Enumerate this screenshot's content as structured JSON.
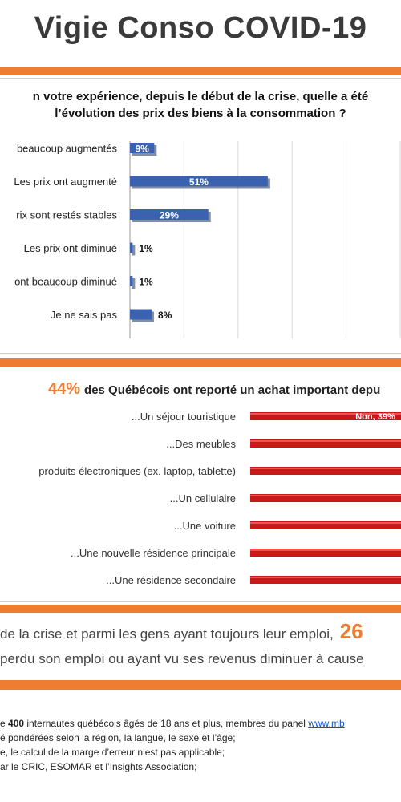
{
  "title": "Vigie Conso COVID-19",
  "question": {
    "line1": "n votre expérience, depuis le début de la crise, quelle a été",
    "line2": "l’évolution des prix des biens à la consommation ?"
  },
  "headline2": {
    "percent": "44%",
    "text": "des Québécois ont reporté un achat important depu"
  },
  "band": {
    "line1_text": "de la crise et parmi les gens ayant toujours leur emploi,",
    "line1_big": "26",
    "line2_text": "perdu son emploi ou ayant vu ses revenus diminuer à cause"
  },
  "footer": {
    "line1_a": "e ",
    "line1_bold": "400",
    "line1_b": " internautes québécois âgés de 18 ans et plus, membres du panel ",
    "line1_link": "www.mb",
    "line2": "é pondérées selon la région, la langue, le sexe et l’âge;",
    "line3": "e, le calcul de la marge d’erreur n’est pas applicable;",
    "line4": "ar le CRIC, ESOMAR et l’Insights Association;"
  },
  "colors": {
    "orange": "#ee7d31",
    "blue_bar": "#3a62b0",
    "red_bar": "#c81818"
  },
  "chart_data": [
    {
      "type": "bar",
      "orientation": "horizontal",
      "categories": [
        "beaucoup augmentés",
        "Les prix ont augmenté",
        "rix sont restés stables",
        "Les prix ont diminué",
        "ont beaucoup diminué",
        "Je ne sais pas"
      ],
      "values": [
        9,
        51,
        29,
        1,
        1,
        8
      ],
      "data_labels": [
        "9%",
        "51%",
        "29%",
        "1%",
        "1%",
        "8%"
      ],
      "xlim": [
        0,
        100
      ],
      "grid": true
    },
    {
      "type": "bar",
      "orientation": "horizontal",
      "categories": [
        "...Un séjour touristique",
        "...Des meubles",
        " produits électroniques (ex. laptop, tablette)",
        "...Un cellulaire",
        "...Une voiture",
        "...Une nouvelle résidence principale",
        "...Une résidence secondaire"
      ],
      "series": [
        {
          "name": "Non",
          "values": [
            39,
            null,
            null,
            null,
            null,
            null,
            null
          ]
        }
      ],
      "data_labels": [
        "Non, 39%",
        "",
        "",
        "",
        "",
        "",
        ""
      ],
      "grid": false
    }
  ]
}
